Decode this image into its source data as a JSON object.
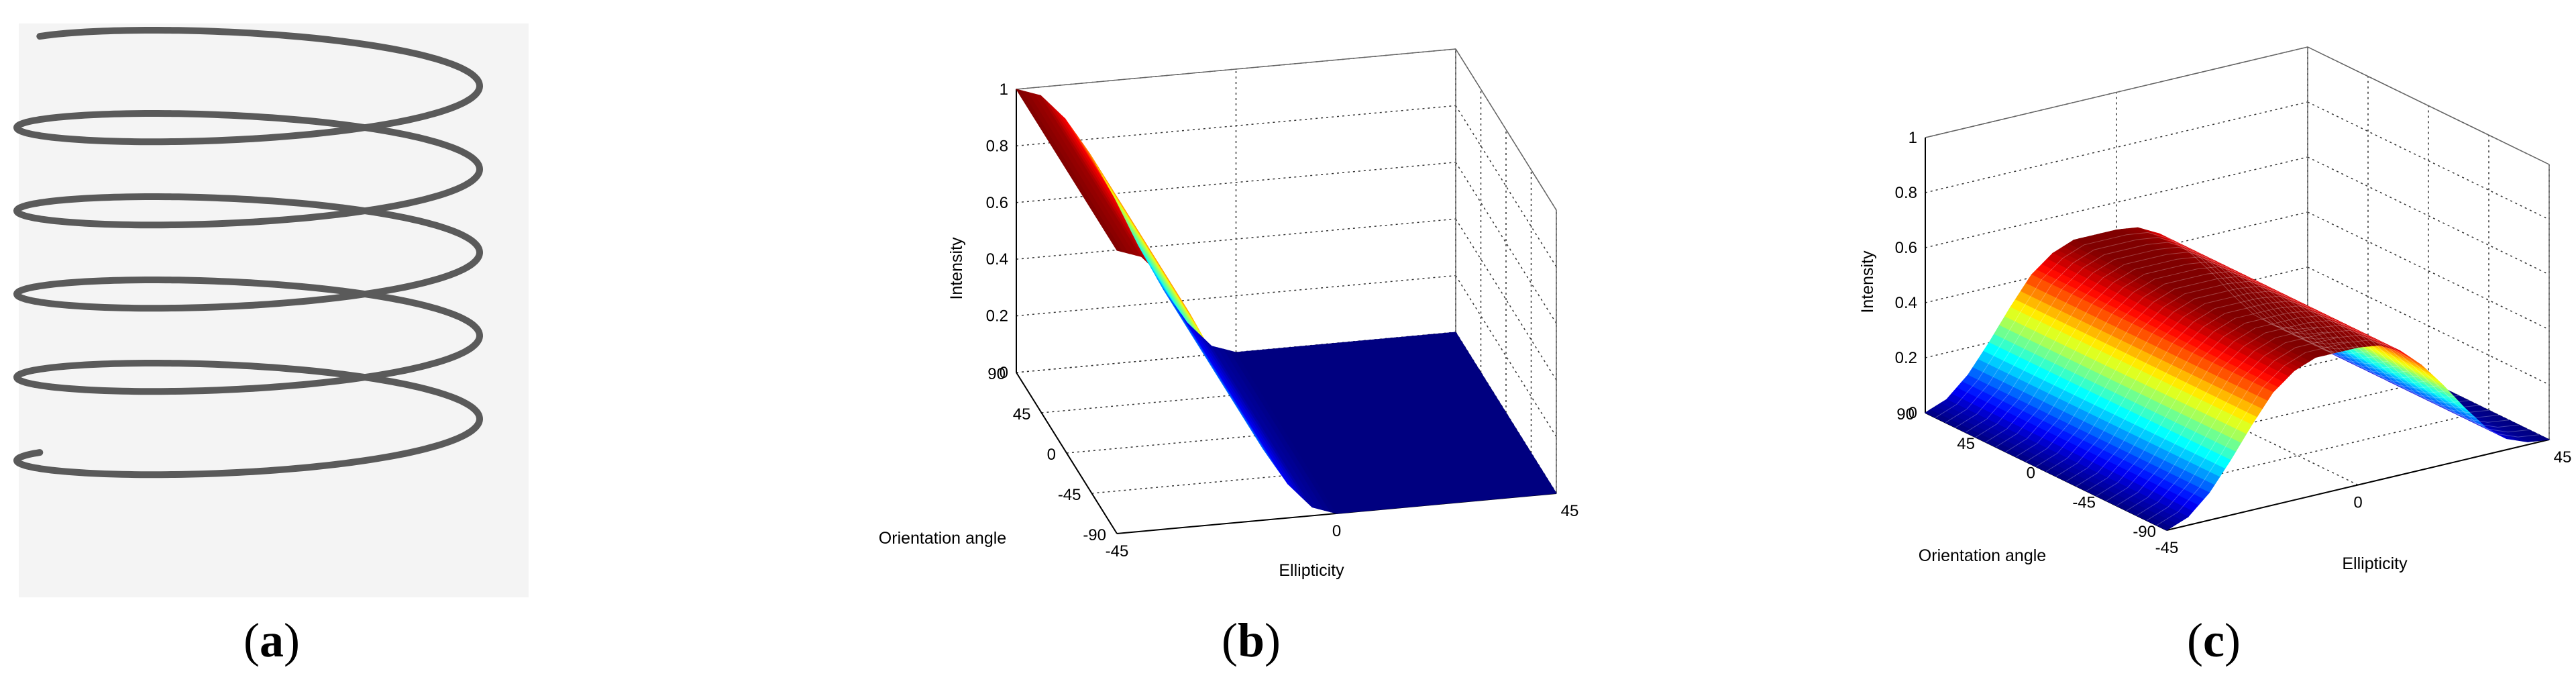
{
  "panels": [
    {
      "id": "a",
      "label_open": "(",
      "label_letter": "a",
      "label_close": ")"
    },
    {
      "id": "b",
      "label_open": "(",
      "label_letter": "b",
      "label_close": ")"
    },
    {
      "id": "c",
      "label_open": "(",
      "label_letter": "c",
      "label_close": ")"
    }
  ],
  "chart_data": [
    {
      "panel": "a",
      "type": "other",
      "description_kind": "helix",
      "turns": 5,
      "line_color": "#5a5a5a"
    },
    {
      "panel": "b",
      "type": "surface",
      "zlabel": "Intensity",
      "xlabel": "Ellipticity",
      "ylabel": "Orientation angle",
      "x_ticks": [
        "-45",
        "0",
        "45"
      ],
      "y_ticks": [
        "90",
        "45",
        "0",
        "-45",
        "-90"
      ],
      "z_ticks": [
        "0",
        "0.2",
        "0.4",
        "0.6",
        "0.8",
        "1"
      ],
      "xlim": [
        -45,
        45
      ],
      "ylim": [
        -90,
        90
      ],
      "zlim": [
        0,
        1
      ],
      "x": [
        -45,
        -40,
        -35,
        -30,
        -25,
        -20,
        -15,
        -10,
        -5,
        0,
        5,
        10,
        15,
        20,
        25,
        30,
        35,
        40,
        45
      ],
      "intensity_vs_ellipticity": [
        1.0,
        0.97,
        0.88,
        0.75,
        0.59,
        0.41,
        0.25,
        0.12,
        0.03,
        0.0,
        0.0,
        0.0,
        0.0,
        0.0,
        0.0,
        0.0,
        0.0,
        0.0,
        0.0
      ],
      "colormap": "jet",
      "grid": true
    },
    {
      "panel": "c",
      "type": "surface",
      "zlabel": "Intensity",
      "xlabel": "Ellipticity",
      "ylabel": "Orientation angle",
      "x_ticks": [
        "-45",
        "0",
        "45"
      ],
      "y_ticks": [
        "90",
        "45",
        "0",
        "-45",
        "-90"
      ],
      "z_ticks": [
        "0",
        "0.2",
        "0.4",
        "0.6",
        "0.8",
        "1"
      ],
      "xlim": [
        -45,
        45
      ],
      "ylim": [
        -90,
        90
      ],
      "zlim": [
        0,
        1
      ],
      "x": [
        -45,
        -40,
        -35,
        -30,
        -25,
        -20,
        -15,
        -10,
        -5,
        0,
        5,
        10,
        15,
        20,
        25,
        30,
        35,
        40,
        45
      ],
      "intensity_vs_ellipticity": [
        0.0,
        0.03,
        0.1,
        0.2,
        0.31,
        0.41,
        0.47,
        0.5,
        0.5,
        0.5,
        0.49,
        0.45,
        0.38,
        0.29,
        0.19,
        0.1,
        0.04,
        0.01,
        0.0
      ],
      "colormap": "jet",
      "grid": true
    }
  ]
}
